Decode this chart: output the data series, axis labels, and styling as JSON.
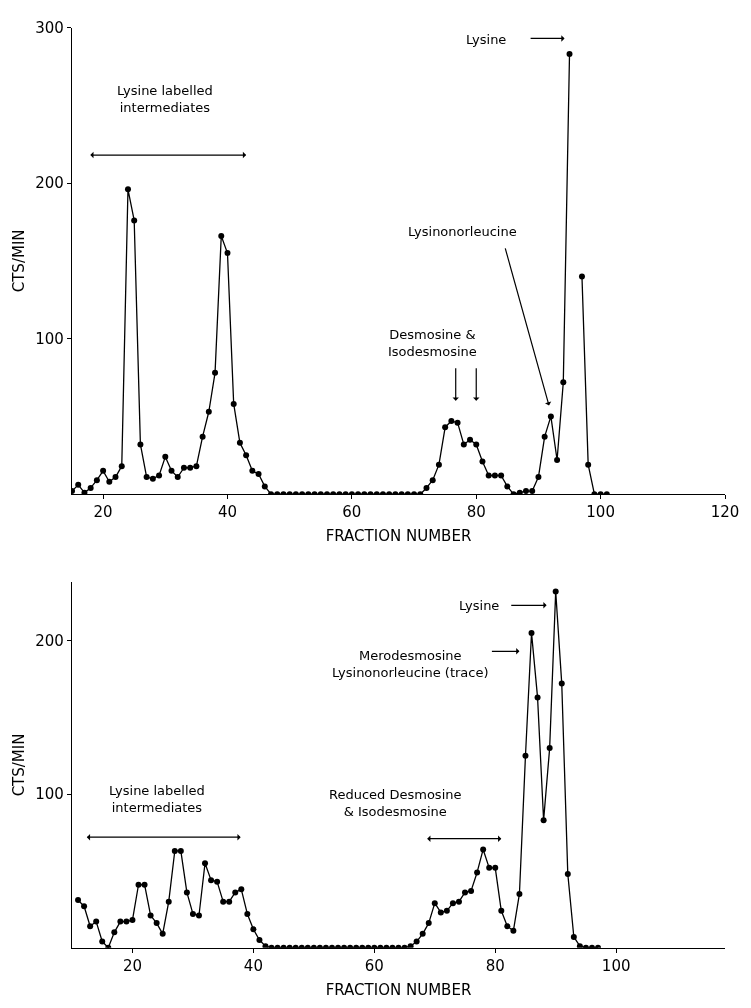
{
  "chart_data": [
    {
      "type": "line",
      "xlabel": "FRACTION NUMBER",
      "ylabel": "CTS/MIN",
      "xlim": [
        15,
        120
      ],
      "ylim": [
        0,
        300
      ],
      "xticks": [
        20,
        40,
        60,
        80,
        100,
        120
      ],
      "yticks": [
        100,
        200,
        300
      ],
      "marker": "circle",
      "annotations": [
        "Lysine labelled\nintermediates",
        "Desmosine &\nIsodesmosine",
        "Lysinonorleucine",
        "Lysine"
      ],
      "series": [
        {
          "color": "#000000",
          "x": [
            15,
            16,
            17,
            18,
            19,
            20,
            21,
            22,
            23,
            24,
            25,
            26,
            27,
            28,
            29,
            30,
            31,
            32,
            33,
            34,
            35,
            36,
            37,
            38,
            39,
            40,
            41,
            42,
            43,
            44,
            45,
            46,
            47,
            48,
            49,
            50,
            51,
            52,
            53,
            54,
            55,
            56,
            57,
            58,
            59,
            60,
            61,
            62,
            63,
            64,
            65,
            66,
            67,
            68,
            69,
            70,
            71,
            72,
            73,
            74,
            75,
            76,
            77,
            78,
            79,
            80,
            81,
            82,
            83,
            84,
            85,
            86,
            87,
            88,
            89,
            90,
            91,
            92,
            93,
            94,
            95,
            96,
            97,
            98,
            99,
            100,
            101
          ],
          "values": [
            2,
            6,
            1,
            4,
            9,
            15,
            8,
            11,
            18,
            196,
            176,
            32,
            11,
            10,
            12,
            24,
            15,
            11,
            17,
            17,
            18,
            37,
            53,
            78,
            166,
            155,
            58,
            33,
            25,
            15,
            13,
            5,
            0,
            0,
            0,
            0,
            0,
            0,
            0,
            0,
            0,
            0,
            0,
            0,
            0,
            0,
            0,
            0,
            0,
            0,
            0,
            0,
            0,
            0,
            0,
            0,
            0,
            4,
            9,
            19,
            43,
            47,
            46,
            32,
            35,
            32,
            21,
            12,
            12,
            12,
            5,
            0,
            1,
            2,
            2,
            11,
            37,
            50,
            22,
            72,
            283,
            null,
            140,
            19,
            0,
            0,
            0
          ]
        }
      ]
    },
    {
      "type": "line",
      "xlabel": "FRACTION NUMBER",
      "ylabel": "CTS/MIN",
      "xlim": [
        10,
        118
      ],
      "ylim": [
        0,
        238
      ],
      "xticks": [
        20,
        40,
        60,
        80,
        100
      ],
      "yticks": [
        100,
        200
      ],
      "marker": "circle",
      "annotations": [
        "Lysine labelled\nintermediates",
        "Reduced Desmosine\n& Isodesmosine",
        "Merodesmosine\nLysinonorleucine (trace)",
        "Lysine"
      ],
      "series": [
        {
          "color": "#000000",
          "x": [
            11,
            12,
            13,
            14,
            15,
            16,
            17,
            18,
            19,
            20,
            21,
            22,
            23,
            24,
            25,
            26,
            27,
            28,
            29,
            30,
            31,
            32,
            33,
            34,
            35,
            36,
            37,
            38,
            39,
            40,
            41,
            42,
            43,
            44,
            45,
            46,
            47,
            48,
            49,
            50,
            51,
            52,
            53,
            54,
            55,
            56,
            57,
            58,
            59,
            60,
            61,
            62,
            63,
            64,
            65,
            66,
            67,
            68,
            69,
            70,
            71,
            72,
            73,
            74,
            75,
            76,
            77,
            78,
            79,
            80,
            81,
            82,
            83,
            84,
            85,
            86,
            87,
            88,
            89,
            90,
            91,
            92,
            93,
            94,
            95,
            96,
            97
          ],
          "values": [
            31,
            27,
            14,
            17,
            4,
            0,
            10,
            17,
            17,
            18,
            41,
            41,
            21,
            16,
            9,
            30,
            63,
            63,
            36,
            22,
            21,
            55,
            44,
            43,
            30,
            30,
            36,
            38,
            22,
            12,
            5,
            1,
            0,
            0,
            0,
            0,
            0,
            0,
            0,
            0,
            0,
            0,
            0,
            0,
            0,
            0,
            0,
            0,
            0,
            0,
            0,
            0,
            0,
            0,
            0,
            1,
            4,
            9,
            16,
            29,
            23,
            24,
            29,
            30,
            36,
            37,
            49,
            64,
            52,
            52,
            24,
            14,
            11,
            35,
            125,
            205,
            163,
            83,
            130,
            232,
            172,
            48,
            7,
            1,
            0,
            0,
            0
          ]
        }
      ]
    }
  ]
}
